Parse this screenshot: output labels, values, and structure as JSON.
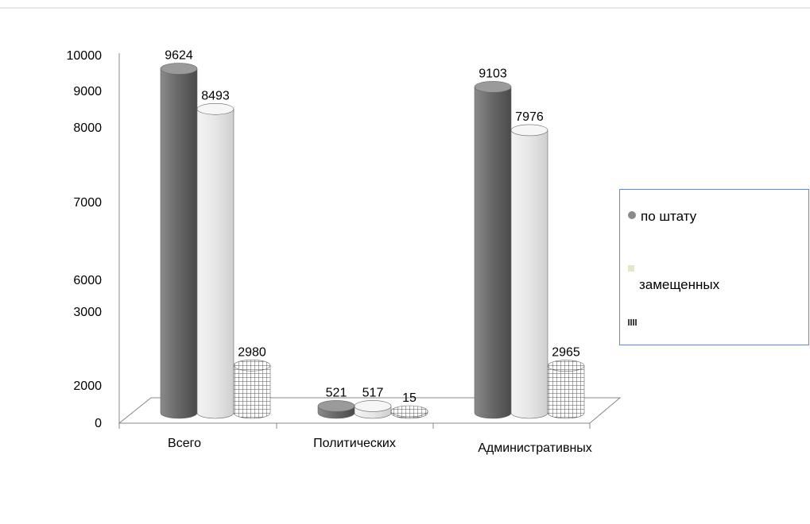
{
  "chart_data": {
    "type": "bar",
    "categories": [
      "Всего",
      "Политических",
      "Административных"
    ],
    "series": [
      {
        "name": "по штату",
        "values": [
          9624,
          521,
          9103
        ],
        "color": "#7a7a7a"
      },
      {
        "name": "замещенных",
        "values": [
          8493,
          517,
          7976
        ],
        "color": "#dcdcdc"
      },
      {
        "name": "",
        "values": [
          2980,
          15,
          2965
        ],
        "color": "#9a9a9a"
      }
    ],
    "yticks": [
      "10000",
      "9000",
      "8000",
      "7000",
      "6000",
      "3000",
      "2000",
      "0"
    ],
    "data_labels": [
      [
        "9624",
        "8493",
        "2980"
      ],
      [
        "521",
        "517",
        "15"
      ],
      [
        "9103",
        "7976",
        "2965"
      ]
    ],
    "legend": {
      "position": "right",
      "labels": [
        "по штату",
        "замещенных",
        ""
      ]
    }
  }
}
